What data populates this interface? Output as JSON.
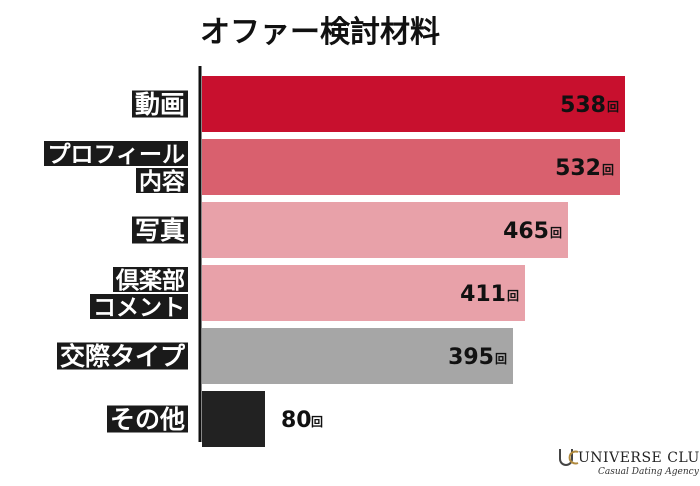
{
  "chart_data": {
    "type": "bar",
    "orientation": "horizontal",
    "title": "オファー検討材料",
    "unit": "回",
    "categories": [
      [
        "動画"
      ],
      [
        "プロフィール",
        "内容"
      ],
      [
        "写真"
      ],
      [
        "倶楽部",
        "コメント"
      ],
      [
        "交際タイプ"
      ],
      [
        "その他"
      ]
    ],
    "values": [
      538,
      532,
      465,
      411,
      395,
      80
    ],
    "bar_colors": [
      "#c8102e",
      "#d9606e",
      "#e8a1a9",
      "#e8a1a9",
      "#a6a6a6",
      "#222222"
    ],
    "value_colors": [
      "#111111",
      "#111111",
      "#111111",
      "#111111",
      "#111111",
      "#111111"
    ],
    "label_bg_color": "#1a1a1a",
    "label_text_color": "#ffffff"
  },
  "brand": {
    "name": "UNIVERSE CLUB",
    "tagline": "Casual Dating Agency",
    "icon": "uc-monogram-icon"
  }
}
